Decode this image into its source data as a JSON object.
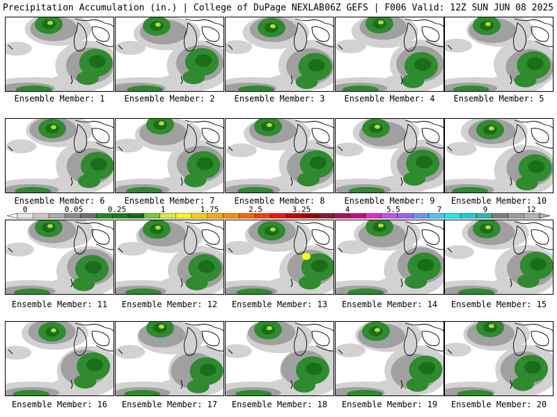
{
  "header": {
    "left": "Precipitation Accumulation (in.) | College of DuPage NEXLAB",
    "right": "06Z GEFS | F006 Valid: 12Z SUN JUN 08 2025"
  },
  "panels": [
    {
      "label": "Ensemble Member: 1"
    },
    {
      "label": "Ensemble Member: 2"
    },
    {
      "label": "Ensemble Member: 3"
    },
    {
      "label": "Ensemble Member: 4"
    },
    {
      "label": "Ensemble Member: 5"
    },
    {
      "label": "Ensemble Member: 6"
    },
    {
      "label": "Ensemble Member: 7"
    },
    {
      "label": "Ensemble Member: 8"
    },
    {
      "label": "Ensemble Member: 9"
    },
    {
      "label": "Ensemble Member: 10"
    },
    {
      "label": "Ensemble Member: 11"
    },
    {
      "label": "Ensemble Member: 12"
    },
    {
      "label": "Ensemble Member: 13"
    },
    {
      "label": "Ensemble Member: 14"
    },
    {
      "label": "Ensemble Member: 15"
    },
    {
      "label": "Ensemble Member: 16"
    },
    {
      "label": "Ensemble Member: 17"
    },
    {
      "label": "Ensemble Member: 18"
    },
    {
      "label": "Ensemble Member: 19"
    },
    {
      "label": "Ensemble Member: 20"
    }
  ],
  "colorbar": {
    "labels": [
      "0",
      "0.05",
      "0.25",
      "1",
      "1.75",
      "2.5",
      "3.25",
      "4",
      "5.5",
      "7",
      "9",
      "12"
    ],
    "colors": [
      "#e6e6e6",
      "#c8c8c8",
      "#aaaaaa",
      "#8c8c8c",
      "#6e6e6e",
      "#1e8c1e",
      "#178017",
      "#0f6e0f",
      "#78c832",
      "#d2f03c",
      "#ffff00",
      "#ffd200",
      "#ffaa00",
      "#ff8c00",
      "#ff6400",
      "#ff3c00",
      "#f01414",
      "#c80000",
      "#a00000",
      "#821e32",
      "#aa145a",
      "#c80a8c",
      "#e628c8",
      "#c850f0",
      "#9664f0",
      "#6496ff",
      "#46c8ff",
      "#14f0f0",
      "#14d2d2",
      "#32b4b4",
      "#7f7f7f",
      "#9b9b9b",
      "#b4b4b4"
    ]
  },
  "colors": {
    "light_gray": "#d2d2d2",
    "mid_gray": "#a0a0a0",
    "green": "#2e8b2e",
    "dark_green": "#1a6e1a",
    "yellow_green": "#b4dc32",
    "yellow": "#ffff00"
  }
}
